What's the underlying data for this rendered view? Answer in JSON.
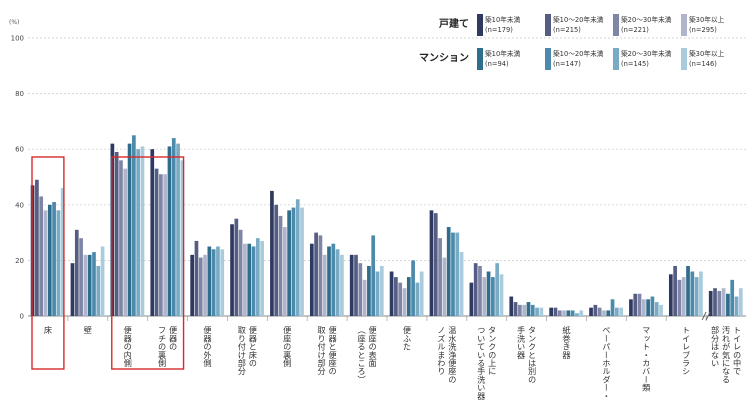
{
  "chart_data": {
    "type": "bar",
    "y_unit": "(%)",
    "ylim": [
      0,
      100
    ],
    "yticks": [
      0,
      20,
      40,
      60,
      80,
      100
    ],
    "grid": true,
    "legend_position": "top-right",
    "legend_groups": [
      {
        "label": "戸建て",
        "series": [
          0,
          1,
          2,
          3
        ]
      },
      {
        "label": "マンション",
        "series": [
          4,
          5,
          6,
          7
        ]
      }
    ],
    "categories": [
      "床",
      "壁",
      "便器の内側",
      "便器のフチの裏側",
      "便器の外側",
      "便器と床の取り付け部分",
      "便座の裏側",
      "便器と便座の取り付け部分",
      "便座の表面（座るところ）",
      "便ふた",
      "温水洗浄便座のノズルまわり",
      "タンクの上についている手洗い器",
      "タンクとは別の手洗い器",
      "紙巻き器",
      "ペーパーホルダー・",
      "マット・カバー類",
      "トイレブラシ",
      "トイレの中で汚れが気になる部分はない"
    ],
    "category_lines": [
      [
        "床"
      ],
      [
        "壁"
      ],
      [
        "便器の内側"
      ],
      [
        "便器の",
        "フチの裏側"
      ],
      [
        "便器の外側"
      ],
      [
        "便器と床の",
        "取り付け部分"
      ],
      [
        "便座の裏側"
      ],
      [
        "便器と便座の",
        "取り付け部分"
      ],
      [
        "便座の表面",
        "（座るところ）"
      ],
      [
        "便ふた"
      ],
      [
        "温水洗浄便座の",
        "ノズルまわり"
      ],
      [
        "タンクの上に",
        "ついている手洗い器"
      ],
      [
        "タンクとは別の",
        "手洗い器"
      ],
      [
        "紙巻き器"
      ],
      [
        "ペーパーホルダー・"
      ],
      [
        "マット・カバー類"
      ],
      [
        "トイレブラシ"
      ],
      [
        "トイレの中で",
        "汚れが気になる",
        "部分はない"
      ]
    ],
    "highlighted_categories": [
      0,
      2,
      3
    ],
    "axis_break_before": 17,
    "series": [
      {
        "name": "築10年未満",
        "n": "(n=179)",
        "color": "#2f3a63",
        "values": [
          47,
          19,
          62,
          60,
          22,
          33,
          45,
          26,
          22,
          16,
          38,
          12,
          7,
          3,
          3,
          6,
          15,
          9
        ]
      },
      {
        "name": "築10～20年未満",
        "n": "(n=215)",
        "color": "#555d83",
        "values": [
          49,
          31,
          59,
          53,
          27,
          35,
          40,
          30,
          22,
          14,
          37,
          19,
          5,
          3,
          4,
          8,
          18,
          10
        ]
      },
      {
        "name": "築20～30年未満",
        "n": "(n=221)",
        "color": "#7f85a5",
        "values": [
          43,
          28,
          56,
          51,
          21,
          31,
          36,
          29,
          19,
          12,
          28,
          18,
          4,
          2,
          3,
          8,
          13,
          9
        ]
      },
      {
        "name": "築30年以上",
        "n": "(n=295)",
        "color": "#b1b5cc",
        "values": [
          38,
          22,
          53,
          51,
          22,
          26,
          32,
          22,
          13,
          10,
          21,
          14,
          4,
          2,
          2,
          6,
          14,
          10
        ]
      },
      {
        "name": "築10年未満",
        "n": "(n=94)",
        "color": "#2f6d8c",
        "values": [
          40,
          22,
          62,
          61,
          25,
          26,
          38,
          25,
          18,
          14,
          32,
          16,
          5,
          2,
          2,
          6,
          18,
          8
        ]
      },
      {
        "name": "築10～20年未満",
        "n": "(n=147)",
        "color": "#4b8aab",
        "values": [
          41,
          23,
          65,
          64,
          24,
          25,
          39,
          26,
          29,
          20,
          30,
          14,
          4,
          2,
          6,
          7,
          16,
          13
        ]
      },
      {
        "name": "築20～30年未満",
        "n": "(n=145)",
        "color": "#7aabc4",
        "values": [
          38,
          18,
          60,
          62,
          25,
          28,
          42,
          24,
          16,
          12,
          30,
          19,
          3,
          1,
          3,
          5,
          14,
          7
        ]
      },
      {
        "name": "築30年以上",
        "n": "(n=146)",
        "color": "#a9cbdc",
        "values": [
          46,
          25,
          61,
          56,
          24,
          27,
          39,
          22,
          18,
          16,
          23,
          15,
          3,
          2,
          3,
          4,
          16,
          10
        ]
      }
    ]
  }
}
